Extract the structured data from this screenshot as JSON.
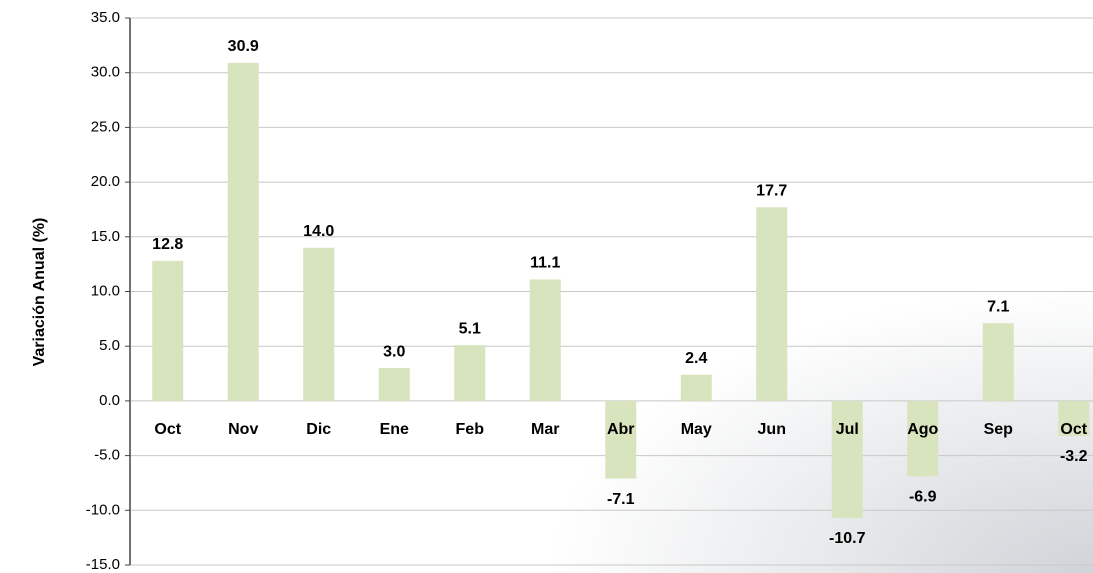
{
  "chart_data": {
    "type": "bar",
    "y_label": "Variación Anual (%)",
    "categories": [
      "Oct",
      "Nov",
      "Dic",
      "Ene",
      "Feb",
      "Mar",
      "Abr",
      "May",
      "Jun",
      "Jul",
      "Ago",
      "Sep",
      "Oct"
    ],
    "values": [
      12.8,
      30.9,
      14.0,
      3.0,
      5.1,
      11.1,
      -7.1,
      2.4,
      17.7,
      -10.7,
      -6.9,
      7.1,
      -3.2
    ],
    "value_labels": [
      "12.8",
      "30.9",
      "14.0",
      "3.0",
      "5.1",
      "11.1",
      "-7.1",
      "2.4",
      "17.7",
      "-10.7",
      "-6.9",
      "7.1",
      "-3.2"
    ],
    "color": "#d7e4bd",
    "ylim": [
      -15,
      35
    ],
    "yticks": [
      {
        "value": -15,
        "label": "-15.0"
      },
      {
        "value": -10,
        "label": "-10.0"
      },
      {
        "value": -5,
        "label": "-5.0"
      },
      {
        "value": 0,
        "label": "0.0"
      },
      {
        "value": 5,
        "label": "5.0"
      },
      {
        "value": 10,
        "label": "10.0"
      },
      {
        "value": 15,
        "label": "15.0"
      },
      {
        "value": 20,
        "label": "20.0"
      },
      {
        "value": 25,
        "label": "25.0"
      },
      {
        "value": 30,
        "label": "30.0"
      },
      {
        "value": 35,
        "label": "35.0"
      }
    ],
    "grid": true
  }
}
